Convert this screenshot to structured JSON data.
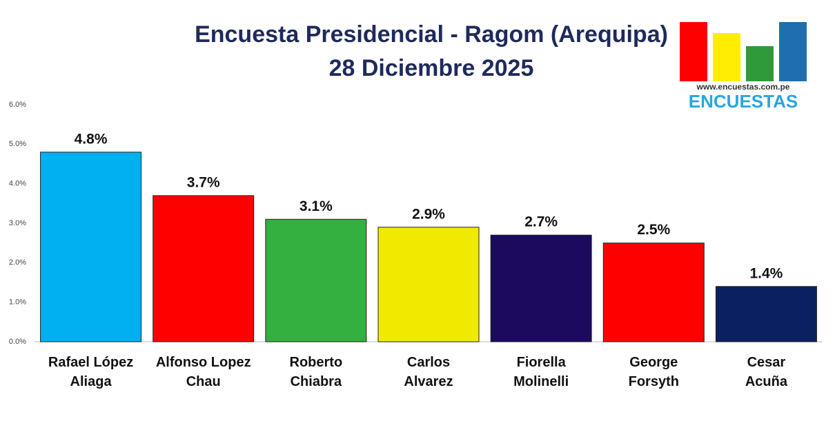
{
  "chart_data": {
    "type": "bar",
    "title": "Encuesta Presidencial - Ragom (Arequipa)",
    "subtitle": "28 Diciembre 2025",
    "categories": [
      "Rafael López\nAliaga",
      "Alfonso Lopez\nChau",
      "Roberto\nChiabra",
      "Carlos\nAlvarez",
      "Fiorella\nMolinelli",
      "George\nForsyth",
      "Cesar\nAcuña"
    ],
    "values": [
      4.8,
      3.7,
      3.1,
      2.9,
      2.7,
      2.5,
      1.4
    ],
    "value_labels": [
      "4.8%",
      "3.7%",
      "3.1%",
      "2.9%",
      "2.7%",
      "2.5%",
      "1.4%"
    ],
    "colors": [
      "#00b0f0",
      "#ff0000",
      "#33b040",
      "#f0ea00",
      "#1c0a5e",
      "#ff0000",
      "#0a2060"
    ],
    "ylim": [
      0,
      6
    ],
    "yticks": [
      {
        "value": 0,
        "label": "0.0%"
      },
      {
        "value": 1,
        "label": "1.0%"
      },
      {
        "value": 2,
        "label": "2.0%"
      },
      {
        "value": 3,
        "label": "3.0%"
      },
      {
        "value": 4,
        "label": "4.0%"
      },
      {
        "value": 5,
        "label": "5.0%"
      },
      {
        "value": 6,
        "label": "6.0%"
      }
    ],
    "grid": false
  },
  "logo": {
    "url": "www.encuestas.com.pe",
    "name": "ENCUESTAS"
  }
}
